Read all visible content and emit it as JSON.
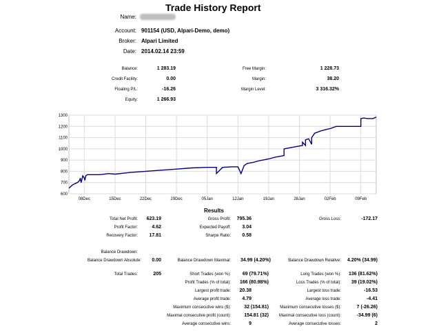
{
  "report": {
    "title": "Trade History Report",
    "name_label": "Name:",
    "account_label": "Account:",
    "account_value": "901154 (USD, Alpari-Demo, demo)",
    "broker_label": "Broker:",
    "broker_value": "Alpari Limited",
    "date_label": "Date:",
    "date_value": "2014.02.14 23:59"
  },
  "summary": {
    "balance_label": "Balance:",
    "balance_value": "1 283.19",
    "credit_label": "Credit Facility:",
    "credit_value": "0.00",
    "floating_label": "Floating P/L:",
    "floating_value": "-16.26",
    "equity_label": "Equity:",
    "equity_value": "1 266.93",
    "free_margin_label": "Free Margin:",
    "free_margin_value": "1 228.73",
    "margin_label": "Margin:",
    "margin_value": "38.20",
    "margin_level_label": "Margin Level:",
    "margin_level_value": "3 316.32%"
  },
  "chart_data": {
    "type": "line",
    "ylim": [
      600,
      1300
    ],
    "yticks": [
      600,
      700,
      800,
      900,
      1000,
      1100,
      1200,
      1300
    ],
    "xticks": [
      "08Dec",
      "15Dec",
      "22Dec",
      "29Dec",
      "05Jan",
      "12Jan",
      "19Jan",
      "26Jan",
      "02Feb",
      "09Feb"
    ],
    "grid": true,
    "line_color": "#00007f",
    "series": [
      {
        "x": [
          0,
          0.012,
          0.02,
          0.028,
          0.035,
          0.037,
          0.04,
          0.045,
          0.05,
          0.052,
          0.055,
          0.06,
          0.07,
          0.1,
          0.13,
          0.15,
          0.2,
          0.25,
          0.3,
          0.35,
          0.4,
          0.45,
          0.48,
          0.48,
          0.5,
          0.53,
          0.55,
          0.56,
          0.57,
          0.575,
          0.58,
          0.6,
          0.62,
          0.65,
          0.67,
          0.7,
          0.7,
          0.72,
          0.74,
          0.76,
          0.76,
          0.77,
          0.77,
          0.78,
          0.79,
          0.79,
          0.8,
          0.82,
          0.84,
          0.85,
          0.86,
          0.87,
          0.9,
          0.92,
          0.95,
          0.95,
          0.96,
          0.97,
          0.99,
          1.0
        ],
        "y": [
          650,
          680,
          690,
          700,
          720,
          740,
          700,
          760,
          740,
          720,
          760,
          770,
          770,
          770,
          780,
          775,
          790,
          800,
          810,
          820,
          830,
          835,
          835,
          780,
          835,
          840,
          840,
          780,
          850,
          860,
          870,
          880,
          895,
          910,
          925,
          940,
          1000,
          1010,
          1020,
          1030,
          1060,
          1030,
          1080,
          1090,
          1040,
          1100,
          1140,
          1160,
          1175,
          1180,
          1190,
          1200,
          1200,
          1200,
          1200,
          1270,
          1275,
          1270,
          1270,
          1283
        ]
      }
    ]
  },
  "results": {
    "title": "Results",
    "total_net_profit_label": "Total Net Profit:",
    "total_net_profit_value": "623.19",
    "gross_profit_label": "Gross Profit:",
    "gross_profit_value": "795.36",
    "gross_loss_label": "Gross Loss:",
    "gross_loss_value": "-172.17",
    "profit_factor_label": "Profit Factor:",
    "profit_factor_value": "4.62",
    "expected_payoff_label": "Expected Payoff:",
    "expected_payoff_value": "3.04",
    "recovery_factor_label": "Recovery Factor:",
    "recovery_factor_value": "17.81",
    "sharpe_ratio_label": "Sharpe Ratio:",
    "sharpe_ratio_value": "0.58",
    "balance_drawdown_label": "Balance Drawdown:",
    "bd_absolute_label": "Balance Drawdown Absolute:",
    "bd_absolute_value": "0.00",
    "bd_maximal_label": "Balance Drawdown Maximal:",
    "bd_maximal_value": "34.99 (4.20%)",
    "bd_relative_label": "Balance Drawdown Relative:",
    "bd_relative_value": "4.20% (34.99)",
    "total_trades_label": "Total Trades:",
    "total_trades_value": "205",
    "short_trades_label": "Short Trades (won %):",
    "short_trades_value": "69 (79.71%)",
    "long_trades_label": "Long Trades (won %):",
    "long_trades_value": "136 (81.62%)",
    "profit_trades_label": "Profit Trades (% of total):",
    "profit_trades_value": "166 (80.98%)",
    "loss_trades_label": "Loss Trades (% of total):",
    "loss_trades_value": "39 (19.02%)",
    "largest_profit_label": "Largest profit trade:",
    "largest_profit_value": "20.38",
    "largest_loss_label": "Largest loss trade:",
    "largest_loss_value": "-16.53",
    "average_profit_label": "Average profit trade:",
    "average_profit_value": "4.79",
    "average_loss_label": "Average loss trade:",
    "average_loss_value": "-4.41",
    "max_consec_wins_label": "Maximum consecutive wins ($):",
    "max_consec_wins_value": "32 (154.81)",
    "max_consec_losses_label": "Maximum consecutive losses ($):",
    "max_consec_losses_value": "7 (-26.26)",
    "maximal_consec_profit_label": "Maximal consecutive profit (count):",
    "maximal_consec_profit_value": "154.81 (32)",
    "maximal_consec_loss_label": "Maximal consecutive loss (count):",
    "maximal_consec_loss_value": "-34.99 (6)",
    "avg_consec_wins_label": "Average consecutive wins:",
    "avg_consec_wins_value": "9",
    "avg_consec_losses_label": "Average consecutive losses:",
    "avg_consec_losses_value": "2"
  }
}
